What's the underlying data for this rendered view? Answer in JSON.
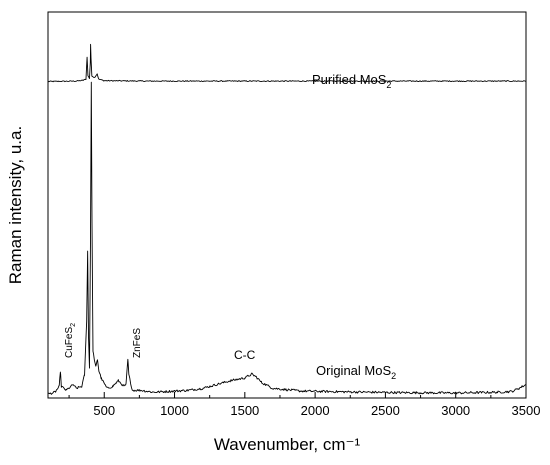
{
  "chart_data": {
    "type": "line",
    "xlabel": "Wavenumber, cm⁻¹",
    "ylabel": "Raman intensity, u.a.",
    "xlim": [
      100,
      3500
    ],
    "xticks": [
      500,
      1000,
      1500,
      2000,
      2500,
      3000,
      3500
    ],
    "y_ticks_shown": false,
    "grid": false,
    "series": [
      {
        "name": "Purified MoS2",
        "baseline": 0.82,
        "points": [
          [
            100,
            0.82
          ],
          [
            300,
            0.821
          ],
          [
            350,
            0.823
          ],
          [
            370,
            0.826
          ],
          [
            378,
            0.884
          ],
          [
            384,
            0.835
          ],
          [
            395,
            0.828
          ],
          [
            401,
            0.87
          ],
          [
            403,
            0.915
          ],
          [
            406,
            0.88
          ],
          [
            412,
            0.835
          ],
          [
            430,
            0.83
          ],
          [
            450,
            0.84
          ],
          [
            460,
            0.826
          ],
          [
            500,
            0.822
          ],
          [
            800,
            0.821
          ],
          [
            3500,
            0.821
          ]
        ]
      },
      {
        "name": "Original MoS2",
        "baseline": 0.01,
        "points": [
          [
            100,
            0.01
          ],
          [
            150,
            0.015
          ],
          [
            180,
            0.03
          ],
          [
            188,
            0.07
          ],
          [
            195,
            0.03
          ],
          [
            230,
            0.02
          ],
          [
            280,
            0.035
          ],
          [
            300,
            0.025
          ],
          [
            340,
            0.03
          ],
          [
            360,
            0.06
          ],
          [
            375,
            0.2
          ],
          [
            382,
            0.38
          ],
          [
            388,
            0.16
          ],
          [
            395,
            0.08
          ],
          [
            402,
            0.4
          ],
          [
            408,
            0.82
          ],
          [
            413,
            0.45
          ],
          [
            420,
            0.12
          ],
          [
            440,
            0.08
          ],
          [
            452,
            0.1
          ],
          [
            462,
            0.07
          ],
          [
            480,
            0.05
          ],
          [
            520,
            0.025
          ],
          [
            560,
            0.03
          ],
          [
            600,
            0.045
          ],
          [
            640,
            0.03
          ],
          [
            655,
            0.035
          ],
          [
            662,
            0.07
          ],
          [
            668,
            0.1
          ],
          [
            675,
            0.06
          ],
          [
            700,
            0.02
          ],
          [
            760,
            0.02
          ],
          [
            850,
            0.015
          ],
          [
            1000,
            0.018
          ],
          [
            1100,
            0.02
          ],
          [
            1200,
            0.025
          ],
          [
            1300,
            0.035
          ],
          [
            1400,
            0.045
          ],
          [
            1500,
            0.052
          ],
          [
            1550,
            0.062
          ],
          [
            1580,
            0.055
          ],
          [
            1620,
            0.04
          ],
          [
            1700,
            0.025
          ],
          [
            1900,
            0.018
          ],
          [
            2200,
            0.016
          ],
          [
            2600,
            0.014
          ],
          [
            3000,
            0.013
          ],
          [
            3300,
            0.015
          ],
          [
            3400,
            0.017
          ],
          [
            3450,
            0.025
          ],
          [
            3500,
            0.035
          ]
        ]
      }
    ],
    "labels": {
      "purified": {
        "prefix": "Purified MoS",
        "subscript": "2"
      },
      "original": {
        "prefix": "Original MoS",
        "subscript": "2"
      },
      "cufes": {
        "prefix": "CuFeS",
        "subscript": "2",
        "x": 190
      },
      "znfes": {
        "text": "ZnFeS",
        "x": 668
      },
      "cc": {
        "text": "C-C",
        "x": 1570
      }
    }
  }
}
